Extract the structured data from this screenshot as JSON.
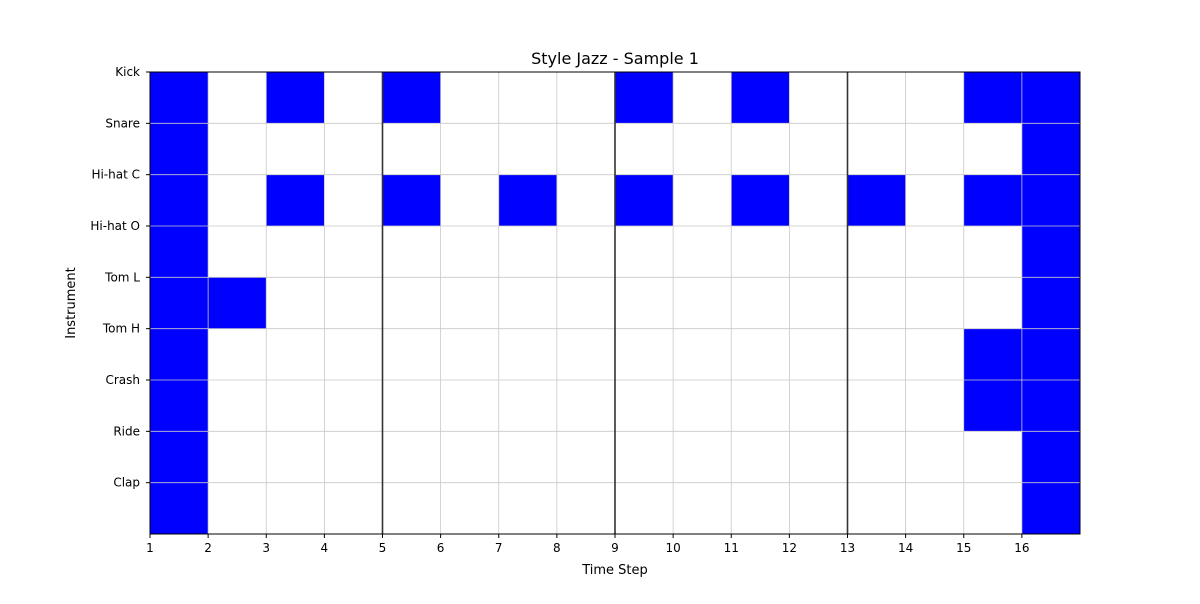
{
  "chart_data": {
    "type": "heatmap",
    "title": "Style Jazz - Sample 1",
    "xlabel": "Time Step",
    "ylabel": "Instrument",
    "x_tick_labels": [
      "1",
      "2",
      "3",
      "4",
      "5",
      "6",
      "7",
      "8",
      "9",
      "10",
      "11",
      "12",
      "13",
      "14",
      "15",
      "16"
    ],
    "rows": [
      "Kick",
      "Snare",
      "Hi-hat C",
      "Hi-hat O",
      "Tom L",
      "Tom H",
      "Crash",
      "Ride",
      "Clap"
    ],
    "steps": 16,
    "grid": true,
    "bar_lines_at_steps": [
      5,
      9,
      13
    ],
    "active_color": "#0000ff",
    "inactive_color": "#ffffff",
    "grid_color": "#c8c8c8",
    "bar_line_color": "#333333",
    "matrix": [
      [
        1,
        0,
        1,
        0,
        1,
        0,
        0,
        0,
        1,
        0,
        1,
        0,
        0,
        0,
        1,
        1
      ],
      [
        1,
        0,
        0,
        0,
        0,
        0,
        0,
        0,
        0,
        0,
        0,
        0,
        0,
        0,
        0,
        1
      ],
      [
        1,
        0,
        1,
        0,
        1,
        0,
        1,
        0,
        1,
        0,
        1,
        0,
        1,
        0,
        1,
        1
      ],
      [
        1,
        0,
        0,
        0,
        0,
        0,
        0,
        0,
        0,
        0,
        0,
        0,
        0,
        0,
        0,
        1
      ],
      [
        1,
        1,
        0,
        0,
        0,
        0,
        0,
        0,
        0,
        0,
        0,
        0,
        0,
        0,
        0,
        1
      ],
      [
        1,
        0,
        0,
        0,
        0,
        0,
        0,
        0,
        0,
        0,
        0,
        0,
        0,
        0,
        1,
        1
      ],
      [
        1,
        0,
        0,
        0,
        0,
        0,
        0,
        0,
        0,
        0,
        0,
        0,
        0,
        0,
        1,
        1
      ],
      [
        1,
        0,
        0,
        0,
        0,
        0,
        0,
        0,
        0,
        0,
        0,
        0,
        0,
        0,
        0,
        1
      ],
      [
        1,
        0,
        0,
        0,
        0,
        0,
        0,
        0,
        0,
        0,
        0,
        0,
        0,
        0,
        0,
        1
      ]
    ]
  }
}
